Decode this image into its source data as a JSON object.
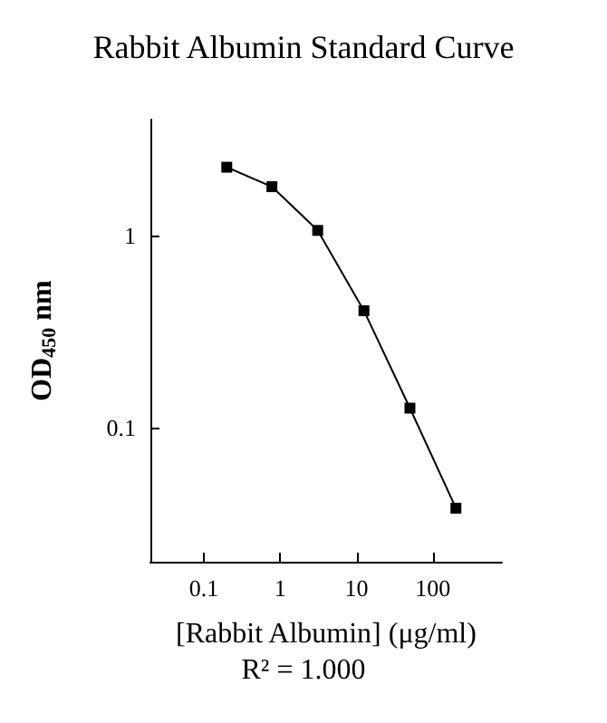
{
  "chart_data": {
    "type": "line",
    "title": "Rabbit Albumin Standard Curve",
    "xlabel": "[Rabbit Albumin] (μg/ml)",
    "ylabel": "OD$_{450}$ nm",
    "annotations": [
      "R² = 1.000"
    ],
    "x": [
      0.2,
      0.78,
      3.1,
      12.5,
      50,
      200
    ],
    "series": [
      {
        "color": "#000000",
        "values": [
          2.26,
          1.79,
          1.06,
          0.405,
          0.126,
          0.038
        ]
      }
    ],
    "log": "xy",
    "xlim": [
      0.02,
      800
    ],
    "ylim": [
      0.02,
      4
    ],
    "xticks": [
      0.1,
      1,
      10,
      100
    ],
    "yticks": [
      0.1,
      1
    ],
    "marker": "square",
    "line_style": "solid",
    "grid": false
  }
}
